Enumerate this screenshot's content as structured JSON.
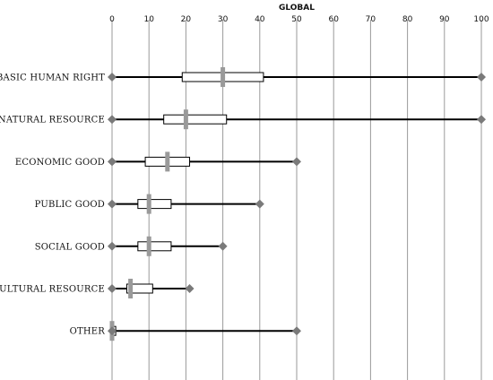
{
  "chart_data": {
    "type": "box",
    "title": "GLOBAL",
    "xlim": [
      0,
      100
    ],
    "xticks": [
      0,
      10,
      20,
      30,
      40,
      50,
      60,
      70,
      80,
      90,
      100
    ],
    "xtick_labels": [
      "0",
      "10",
      "20",
      "30",
      "40",
      "50",
      "60",
      "70",
      "80",
      "90",
      "100"
    ],
    "grid": true,
    "categories": [
      {
        "label": "BASIC HUMAN RIGHT",
        "min": 0,
        "q1": 19,
        "median": 30,
        "q3": 41,
        "max": 100
      },
      {
        "label": "NATURAL RESOURCE",
        "min": 0,
        "q1": 14,
        "median": 20,
        "q3": 31,
        "max": 100
      },
      {
        "label": "ECONOMIC GOOD",
        "min": 0,
        "q1": 9,
        "median": 15,
        "q3": 21,
        "max": 50
      },
      {
        "label": "PUBLIC GOOD",
        "min": 0,
        "q1": 7,
        "median": 10,
        "q3": 16,
        "max": 40
      },
      {
        "label": "SOCIAL GOOD",
        "min": 0,
        "q1": 7,
        "median": 10,
        "q3": 16,
        "max": 30
      },
      {
        "label": "CULTURAL RESOURCE",
        "min": 0,
        "q1": 4,
        "median": 5,
        "q3": 11,
        "max": 21
      },
      {
        "label": "OTHER",
        "min": 0,
        "q1": 0,
        "median": 0,
        "q3": 1,
        "max": 50
      }
    ],
    "colors": {
      "box_fill": "#ffffff",
      "whisker": "#000000",
      "marker": "#7a7a7a",
      "median": "#9a9a9a",
      "grid": "#9a9a9a"
    }
  }
}
